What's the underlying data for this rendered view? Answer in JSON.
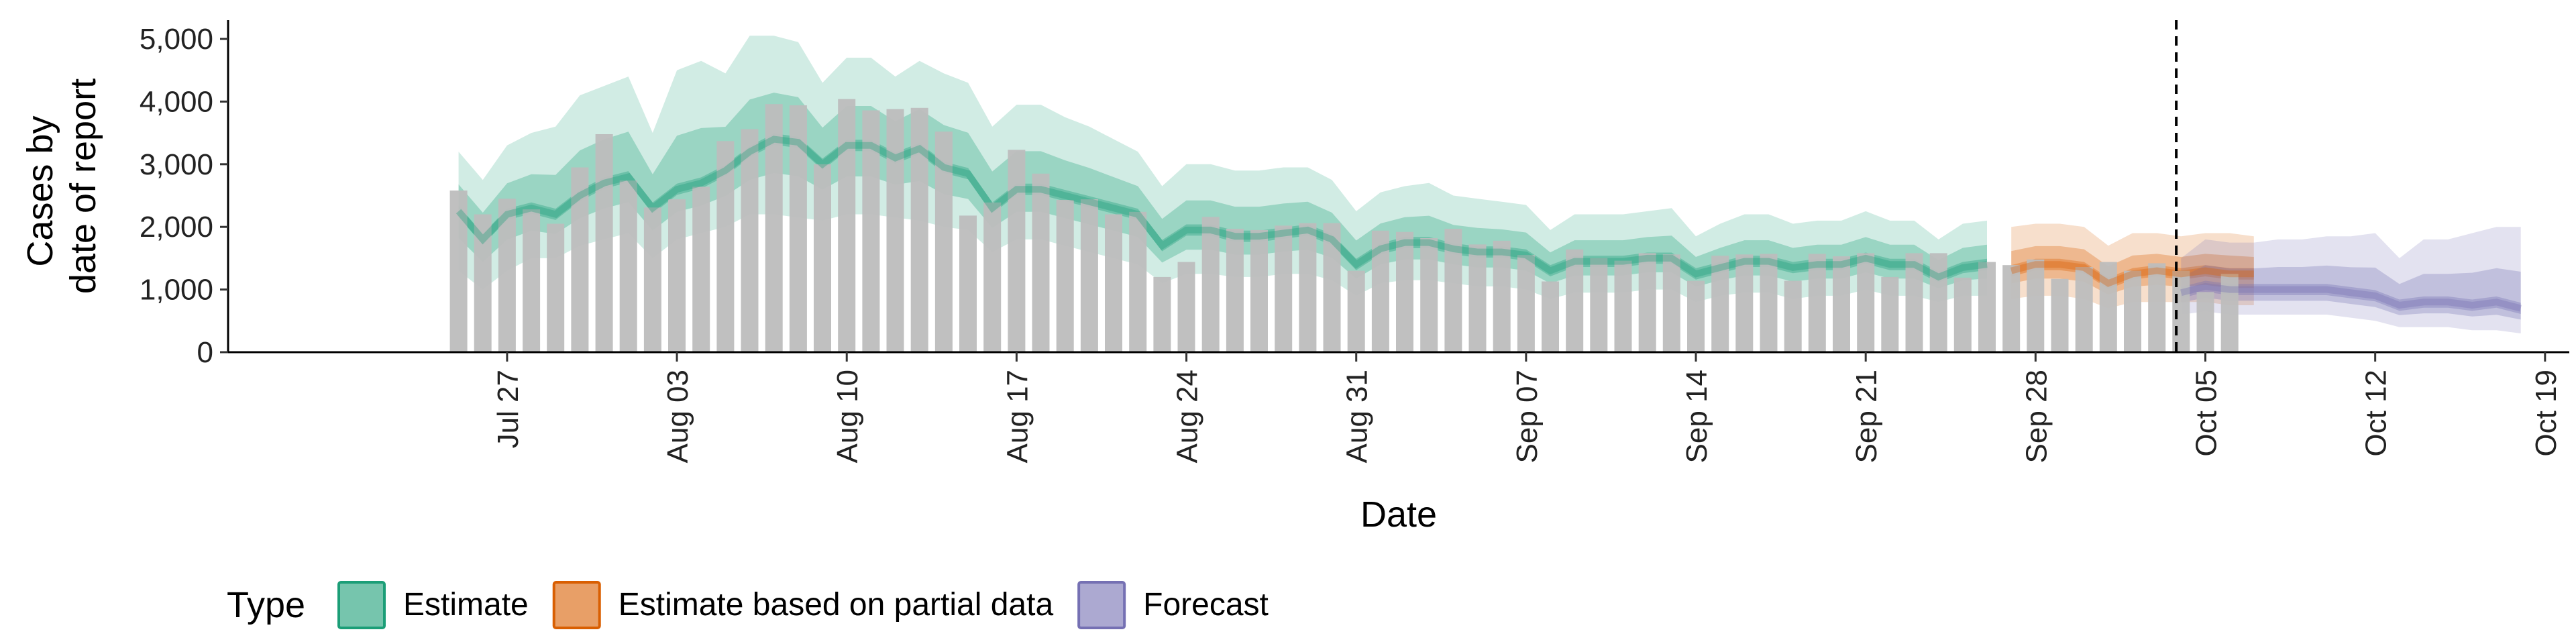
{
  "chart_data": {
    "type": "area",
    "xlabel": "Date",
    "ylabel_lines": [
      "Cases by",
      "date of report"
    ],
    "ylim": [
      0,
      5300
    ],
    "yticks": [
      0,
      1000,
      2000,
      3000,
      4000,
      5000
    ],
    "ytick_labels": [
      "0",
      "1,000",
      "2,000",
      "3,000",
      "4,000",
      "5,000"
    ],
    "x_origin": "2020-07-20",
    "xlim_days": [
      -4.5,
      92
    ],
    "xtick_days": [
      7,
      14,
      21,
      28,
      35,
      42,
      49,
      56,
      63,
      70,
      77,
      84,
      91
    ],
    "xtick_labels": [
      "Jul 27",
      "Aug 03",
      "Aug 10",
      "Aug 17",
      "Aug 24",
      "Aug 31",
      "Sep 07",
      "Sep 14",
      "Sep 21",
      "Sep 28",
      "Oct 05",
      "Oct 12",
      "Oct 19"
    ],
    "vline_day": 75.8,
    "grid": false,
    "legend_position": "bottom",
    "legend": {
      "title": "Type",
      "items": [
        {
          "label": "Estimate",
          "color": "#1b9e77"
        },
        {
          "label": "Estimate based on partial data",
          "color": "#d95f02"
        },
        {
          "label": "Forecast",
          "color": "#7570b3"
        }
      ]
    },
    "bars": {
      "color": "#bdbdbd",
      "start_day": 5,
      "values": [
        2580,
        2200,
        2450,
        2280,
        2050,
        2950,
        3480,
        2740,
        2310,
        2440,
        2640,
        3370,
        3560,
        3960,
        3940,
        3000,
        4040,
        3860,
        3880,
        3900,
        3520,
        2180,
        2390,
        3230,
        2850,
        2430,
        2440,
        2200,
        2240,
        1200,
        1440,
        2160,
        1970,
        1950,
        2020,
        2060,
        2060,
        1300,
        1940,
        1920,
        1820,
        1970,
        1720,
        1780,
        1550,
        1130,
        1640,
        1500,
        1460,
        1580,
        1560,
        1140,
        1540,
        1560,
        1570,
        1140,
        1570,
        1530,
        1580,
        1200,
        1580,
        1580,
        1190,
        1440,
        1390,
        1480,
        1170,
        1360,
        1440,
        1300,
        1420,
        1300,
        960,
        1250
      ]
    },
    "series": [
      {
        "name": "Estimate",
        "color": "#1b9e77",
        "start_day": 5,
        "median": [
          2250,
          1800,
          2200,
          2300,
          2200,
          2500,
          2700,
          2800,
          2300,
          2600,
          2700,
          2900,
          3200,
          3400,
          3350,
          3000,
          3300,
          3300,
          3100,
          3250,
          2950,
          2850,
          2300,
          2600,
          2600,
          2500,
          2400,
          2300,
          2200,
          1700,
          1950,
          1950,
          1850,
          1850,
          1900,
          1950,
          1800,
          1400,
          1650,
          1750,
          1750,
          1650,
          1600,
          1600,
          1550,
          1300,
          1450,
          1450,
          1450,
          1500,
          1500,
          1250,
          1350,
          1450,
          1450,
          1350,
          1400,
          1400,
          1500,
          1400,
          1400,
          1200,
          1350,
          1400
        ],
        "lower": [
          1300,
          1000,
          1300,
          1500,
          1500,
          1700,
          1800,
          1900,
          1500,
          1800,
          1900,
          2000,
          2200,
          2200,
          2150,
          2100,
          2200,
          2200,
          2150,
          2100,
          2000,
          1950,
          1600,
          1800,
          1800,
          1700,
          1600,
          1500,
          1400,
          1100,
          1250,
          1250,
          1200,
          1200,
          1250,
          1250,
          1150,
          900,
          1100,
          1150,
          1150,
          1100,
          1050,
          1050,
          1000,
          850,
          950,
          950,
          950,
          1000,
          1000,
          800,
          900,
          950,
          950,
          850,
          900,
          900,
          1000,
          900,
          900,
          800,
          900,
          900
        ],
        "upper": [
          3200,
          2750,
          3300,
          3500,
          3600,
          4100,
          4250,
          4400,
          3500,
          4500,
          4650,
          4450,
          5050,
          5050,
          4950,
          4300,
          4700,
          4700,
          4400,
          4650,
          4450,
          4300,
          3600,
          3950,
          3950,
          3750,
          3600,
          3400,
          3200,
          2650,
          3000,
          3000,
          2900,
          2900,
          2950,
          2950,
          2750,
          2250,
          2550,
          2650,
          2700,
          2500,
          2450,
          2400,
          2350,
          1950,
          2200,
          2200,
          2200,
          2250,
          2300,
          1850,
          2050,
          2200,
          2200,
          2050,
          2100,
          2100,
          2250,
          2100,
          2100,
          1800,
          2050,
          2100
        ]
      },
      {
        "name": "Estimate based on partial data",
        "color": "#d95f02",
        "start_day": 69,
        "median": [
          1300,
          1400,
          1400,
          1350,
          1100,
          1250,
          1300,
          1250,
          1300,
          1250,
          1250
        ],
        "lower": [
          850,
          900,
          900,
          850,
          700,
          800,
          800,
          800,
          800,
          750,
          750
        ],
        "upper": [
          2000,
          2050,
          2050,
          2000,
          1700,
          1900,
          1900,
          1850,
          1900,
          1900,
          1850
        ]
      },
      {
        "name": "Forecast",
        "color": "#7570b3",
        "start_day": 76,
        "median": [
          950,
          1050,
          1000,
          1000,
          1000,
          1000,
          1000,
          950,
          900,
          750,
          800,
          800,
          750,
          800,
          700
        ],
        "lower": [
          600,
          650,
          600,
          600,
          600,
          600,
          600,
          550,
          500,
          400,
          400,
          400,
          350,
          350,
          300
        ],
        "upper": [
          1500,
          1800,
          1750,
          1750,
          1800,
          1800,
          1850,
          1850,
          1900,
          1500,
          1800,
          1800,
          1900,
          2000,
          2000
        ]
      }
    ]
  }
}
